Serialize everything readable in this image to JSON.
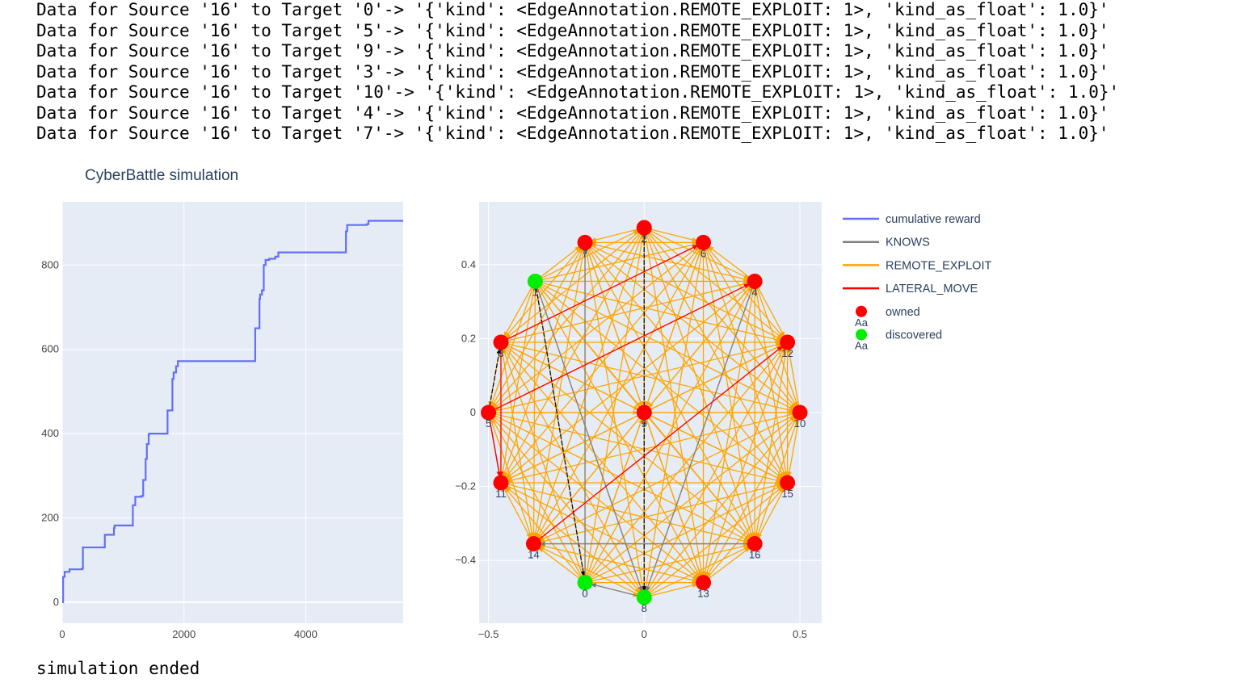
{
  "log_lines": [
    "Data for Source '16' to Target '0'-> '{'kind': <EdgeAnnotation.REMOTE_EXPLOIT: 1>, 'kind_as_float': 1.0}'",
    "Data for Source '16' to Target '5'-> '{'kind': <EdgeAnnotation.REMOTE_EXPLOIT: 1>, 'kind_as_float': 1.0}'",
    "Data for Source '16' to Target '9'-> '{'kind': <EdgeAnnotation.REMOTE_EXPLOIT: 1>, 'kind_as_float': 1.0}'",
    "Data for Source '16' to Target '3'-> '{'kind': <EdgeAnnotation.REMOTE_EXPLOIT: 1>, 'kind_as_float': 1.0}'",
    "Data for Source '16' to Target '10'-> '{'kind': <EdgeAnnotation.REMOTE_EXPLOIT: 1>, 'kind_as_float': 1.0}'",
    "Data for Source '16' to Target '4'-> '{'kind': <EdgeAnnotation.REMOTE_EXPLOIT: 1>, 'kind_as_float': 1.0}'",
    "Data for Source '16' to Target '7'-> '{'kind': <EdgeAnnotation.REMOTE_EXPLOIT: 1>, 'kind_as_float': 1.0}'"
  ],
  "footer_text": "simulation ended",
  "chart_data": [
    {
      "type": "line",
      "title": "CyberBattle simulation",
      "series": [
        {
          "name": "cumulative reward",
          "color": "#636efa",
          "x": [
            0,
            15,
            40,
            120,
            330,
            340,
            680,
            700,
            850,
            860,
            1150,
            1160,
            1200,
            1300,
            1330,
            1370,
            1390,
            1420,
            1430,
            1500,
            1710,
            1730,
            1790,
            1810,
            1830,
            1870,
            1900,
            3160,
            3170,
            3240,
            3250,
            3280,
            3310,
            3340,
            3400,
            3500,
            3550,
            3600,
            4640,
            4660,
            4680,
            5000,
            5030,
            5600
          ],
          "y": [
            0,
            60,
            72,
            78,
            80,
            130,
            130,
            160,
            176,
            182,
            182,
            230,
            250,
            252,
            290,
            340,
            375,
            398,
            400,
            400,
            400,
            455,
            455,
            530,
            545,
            560,
            572,
            572,
            650,
            720,
            730,
            740,
            800,
            812,
            815,
            820,
            830,
            830,
            830,
            880,
            895,
            897,
            905,
            905
          ]
        }
      ],
      "xlim": [
        0,
        5600
      ],
      "ylim": [
        -50,
        950
      ],
      "xticks": [
        0,
        2000,
        4000
      ],
      "yticks": [
        0,
        200,
        400,
        600,
        800
      ]
    },
    {
      "type": "scatter",
      "title": "",
      "xlim": [
        -0.53,
        0.57
      ],
      "ylim": [
        -0.57,
        0.57
      ],
      "xticks": [
        -0.5,
        0,
        0.5
      ],
      "yticks": [
        -0.4,
        -0.2,
        0,
        0.2,
        0.4
      ],
      "nodes": [
        {
          "id": "0",
          "x": -0.19,
          "y": -0.46,
          "status": "discovered"
        },
        {
          "id": "1",
          "x": -0.35,
          "y": 0.355,
          "status": "discovered"
        },
        {
          "id": "2",
          "x": 0.0,
          "y": 0.5,
          "status": "owned"
        },
        {
          "id": "3",
          "x": -0.46,
          "y": 0.19,
          "status": "owned"
        },
        {
          "id": "4",
          "x": 0.355,
          "y": 0.355,
          "status": "owned"
        },
        {
          "id": "5",
          "x": -0.5,
          "y": 0.0,
          "status": "owned"
        },
        {
          "id": "6",
          "x": 0.19,
          "y": 0.46,
          "status": "owned"
        },
        {
          "id": "7",
          "x": -0.19,
          "y": 0.46,
          "status": "owned"
        },
        {
          "id": "8",
          "x": 0.0,
          "y": -0.5,
          "status": "discovered"
        },
        {
          "id": "9",
          "x": 0.0,
          "y": 0.0,
          "status": "owned"
        },
        {
          "id": "10",
          "x": 0.5,
          "y": 0.0,
          "status": "owned"
        },
        {
          "id": "11",
          "x": -0.46,
          "y": -0.19,
          "status": "owned"
        },
        {
          "id": "12",
          "x": 0.46,
          "y": 0.19,
          "status": "owned"
        },
        {
          "id": "13",
          "x": 0.19,
          "y": -0.46,
          "status": "owned"
        },
        {
          "id": "14",
          "x": -0.355,
          "y": -0.355,
          "status": "owned"
        },
        {
          "id": "15",
          "x": 0.46,
          "y": -0.19,
          "status": "owned"
        },
        {
          "id": "16",
          "x": 0.355,
          "y": -0.355,
          "status": "owned"
        }
      ],
      "edges": {
        "REMOTE_EXPLOIT": "all node pairs",
        "KNOWS": [
          [
            "1",
            "0"
          ],
          [
            "0",
            "7"
          ],
          [
            "8",
            "0"
          ],
          [
            "5",
            "3"
          ],
          [
            "5",
            "11"
          ],
          [
            "16",
            "14"
          ],
          [
            "2",
            "8"
          ],
          [
            "4",
            "8"
          ],
          [
            "1",
            "8"
          ]
        ],
        "LATERAL_MOVE": [
          [
            "3",
            "6"
          ],
          [
            "5",
            "4"
          ],
          [
            "14",
            "12"
          ],
          [
            "5",
            "11"
          ],
          [
            "3",
            "11"
          ]
        ]
      },
      "legend": [
        {
          "name": "cumulative reward",
          "kind": "line",
          "color": "#636efa"
        },
        {
          "name": "KNOWS",
          "kind": "line",
          "color": "#808080"
        },
        {
          "name": "REMOTE_EXPLOIT",
          "kind": "line",
          "color": "#ffa500"
        },
        {
          "name": "LATERAL_MOVE",
          "kind": "line",
          "color": "#ff0000"
        },
        {
          "name": "owned",
          "kind": "marker",
          "color": "#ff0000",
          "marker_text": "Aa"
        },
        {
          "name": "discovered",
          "kind": "marker",
          "color": "#00ee00",
          "marker_text": "Aa"
        }
      ]
    }
  ]
}
